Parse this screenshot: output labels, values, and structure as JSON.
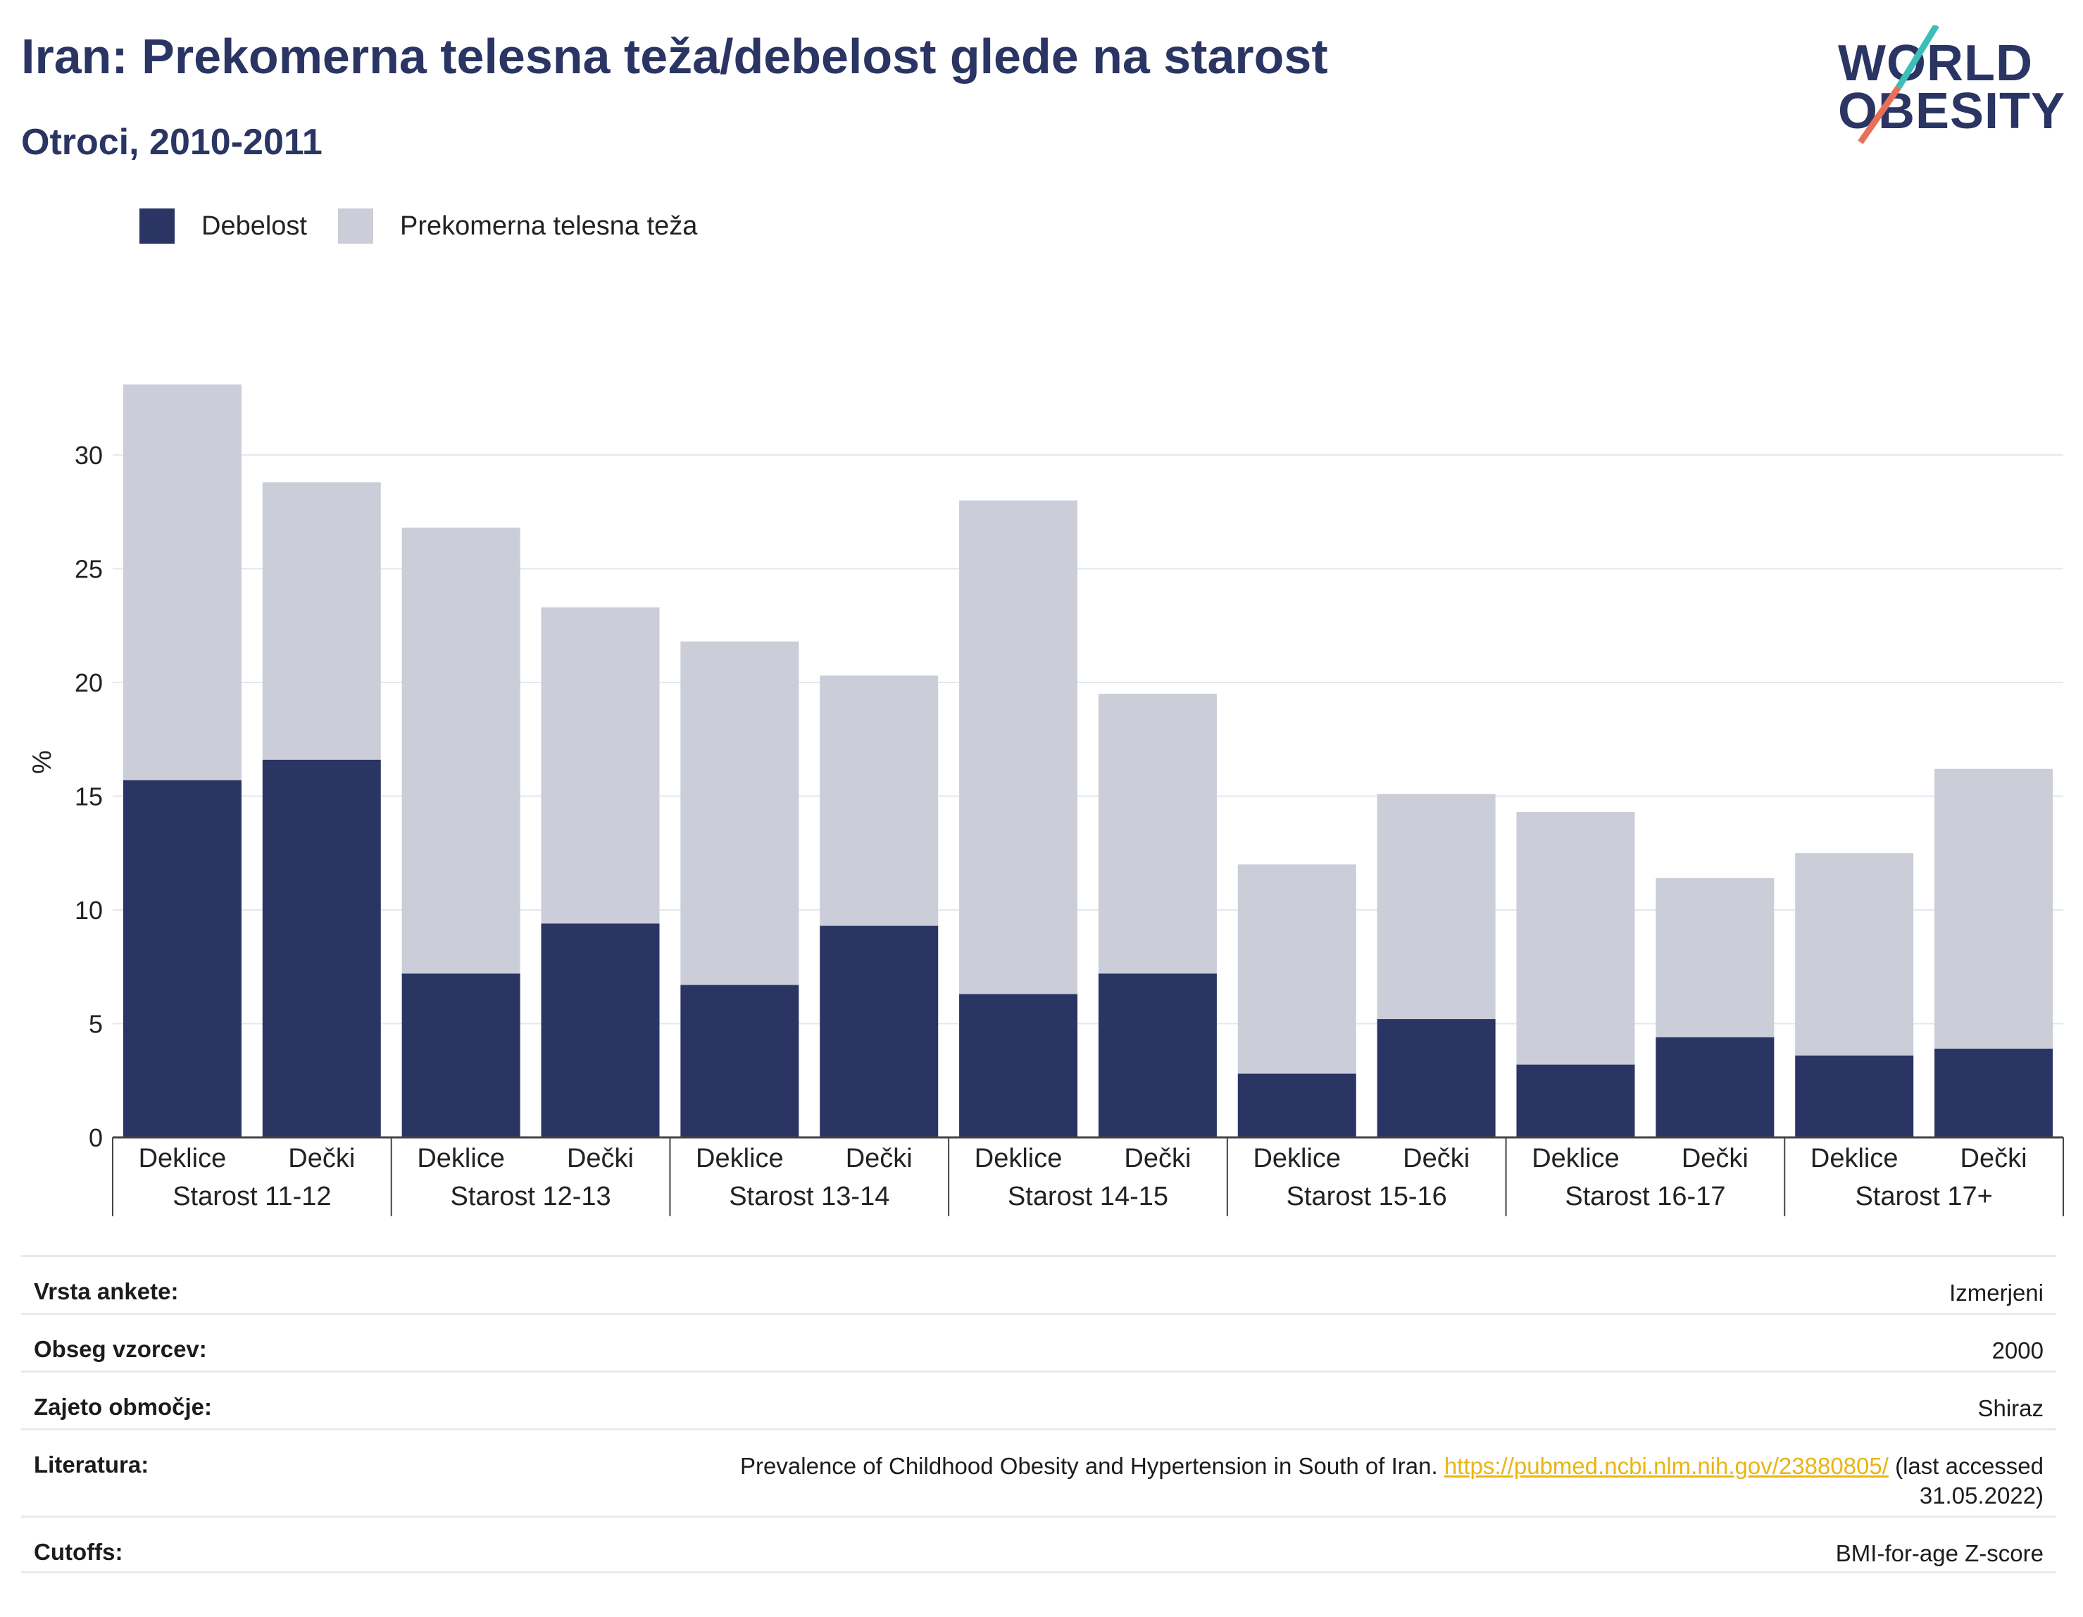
{
  "header": {
    "title": "Iran: Prekomerna telesna teža/debelost glede na starost",
    "subtitle": "Otroci, 2010-2011"
  },
  "logo": {
    "line1": "WORLD",
    "line2": "OBESITY",
    "colors": {
      "text": "#2a3563",
      "slash_top": "#3bbfb9",
      "slash_bottom": "#e8705a"
    }
  },
  "legend": [
    {
      "label": "Debelost",
      "color": "#2a3563"
    },
    {
      "label": "Prekomerna telesna teža",
      "color": "#cbcdd9"
    }
  ],
  "chart_data": {
    "type": "bar",
    "stacked": true,
    "ylabel": "%",
    "ylim": [
      0,
      33
    ],
    "yticks": [
      0,
      5,
      10,
      15,
      20,
      25,
      30
    ],
    "grid": true,
    "groups": [
      {
        "label": "Starost 11-12",
        "bars": [
          {
            "label": "Deklice",
            "obesity": 15.7,
            "total": 33.1
          },
          {
            "label": "Dečki",
            "obesity": 16.6,
            "total": 28.8
          }
        ]
      },
      {
        "label": "Starost 12-13",
        "bars": [
          {
            "label": "Deklice",
            "obesity": 7.2,
            "total": 26.8
          },
          {
            "label": "Dečki",
            "obesity": 9.4,
            "total": 23.3
          }
        ]
      },
      {
        "label": "Starost 13-14",
        "bars": [
          {
            "label": "Deklice",
            "obesity": 6.7,
            "total": 21.8
          },
          {
            "label": "Dečki",
            "obesity": 9.3,
            "total": 20.3
          }
        ]
      },
      {
        "label": "Starost 14-15",
        "bars": [
          {
            "label": "Deklice",
            "obesity": 6.3,
            "total": 28.0
          },
          {
            "label": "Dečki",
            "obesity": 7.2,
            "total": 19.5
          }
        ]
      },
      {
        "label": "Starost 15-16",
        "bars": [
          {
            "label": "Deklice",
            "obesity": 2.8,
            "total": 12.0
          },
          {
            "label": "Dečki",
            "obesity": 5.2,
            "total": 15.1
          }
        ]
      },
      {
        "label": "Starost 16-17",
        "bars": [
          {
            "label": "Deklice",
            "obesity": 3.2,
            "total": 14.3
          },
          {
            "label": "Dečki",
            "obesity": 4.4,
            "total": 11.4
          }
        ]
      },
      {
        "label": "Starost 17+",
        "bars": [
          {
            "label": "Deklice",
            "obesity": 3.6,
            "total": 12.5
          },
          {
            "label": "Dečki",
            "obesity": 3.9,
            "total": 16.2
          }
        ]
      }
    ]
  },
  "meta": [
    {
      "key": "Vrsta ankete:",
      "value": "Izmerjeni"
    },
    {
      "key": "Obseg vzorcev:",
      "value": "2000"
    },
    {
      "key": "Zajeto območje:",
      "value": "Shiraz"
    },
    {
      "key": "Literatura:",
      "value_pre": "Prevalence of Childhood Obesity and Hypertension in South of Iran. ",
      "link": "https://pubmed.ncbi.nlm.nih.gov/23880805/",
      "value_post": " (last accessed 31.05.2022)"
    },
    {
      "key": "Cutoffs:",
      "value": "BMI-for-age Z-score"
    }
  ]
}
